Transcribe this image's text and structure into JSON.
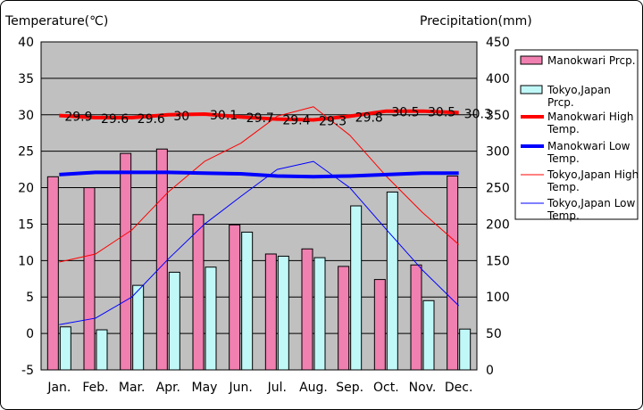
{
  "chart_data": {
    "type": "bar+line",
    "left_axis_title": "Temperature(℃)",
    "right_axis_title": "Precipitation(mm)",
    "left_ticks": [
      "40",
      "35",
      "30",
      "25",
      "20",
      "15",
      "10",
      "5",
      "0",
      "-5"
    ],
    "right_ticks": [
      "450",
      "400",
      "350",
      "300",
      "250",
      "200",
      "150",
      "100",
      "50",
      "0"
    ],
    "left_range": [
      -5,
      40
    ],
    "right_range": [
      0,
      450
    ],
    "categories": [
      "Jan.",
      "Feb.",
      "Mar.",
      "Apr.",
      "May",
      "Jun.",
      "Jul.",
      "Aug.",
      "Sep.",
      "Oct.",
      "Nov.",
      "Dec."
    ],
    "bar_series": [
      {
        "name": "Manokwari Prcp.",
        "color": "#f080b0",
        "values": [
          265,
          250,
          297,
          303,
          213,
          199,
          159,
          166,
          142,
          124,
          144,
          266
        ]
      },
      {
        "name": "Tokyo,Japan Prcp.",
        "color": "#c0f8f8",
        "values": [
          59,
          55,
          116,
          134,
          141,
          189,
          156,
          154,
          225,
          244,
          95,
          56
        ]
      }
    ],
    "line_series": [
      {
        "name": "Manokwari High Temp.",
        "color": "#ff0000",
        "width": "thick",
        "values": [
          29.9,
          29.6,
          29.6,
          30,
          30.1,
          29.7,
          29.4,
          29.3,
          29.8,
          30.5,
          30.5,
          30.3
        ],
        "labels": [
          "29.9",
          "29.6",
          "29.6",
          "30",
          "30.1",
          "29.7",
          "29.4",
          "29.3",
          "29.8",
          "30.5",
          "30.5",
          "30.3"
        ]
      },
      {
        "name": "Manokwari Low Temp.",
        "color": "#0000ff",
        "width": "thick",
        "values": [
          21.8,
          22.1,
          22.1,
          22.1,
          22.0,
          21.9,
          21.6,
          21.5,
          21.6,
          21.8,
          22.0,
          22.0
        ]
      },
      {
        "name": "Tokyo,Japan High Temp.",
        "color": "#ff0000",
        "width": "thin",
        "values": [
          9.8,
          10.9,
          14.2,
          19.4,
          23.6,
          26.1,
          29.8,
          31.1,
          27.2,
          21.6,
          16.6,
          12.2
        ]
      },
      {
        "name": "Tokyo,Japan Low Temp.",
        "color": "#0000ff",
        "width": "thin",
        "values": [
          1.2,
          2.1,
          5.0,
          10.2,
          15.0,
          18.8,
          22.5,
          23.6,
          20.0,
          14.3,
          8.7,
          3.8
        ]
      }
    ],
    "legend": [
      {
        "label": "Manokwari Prcp.",
        "kind": "bar",
        "color": "#f080b0"
      },
      {
        "label": "Tokyo,Japan Prcp.",
        "kind": "bar",
        "color": "#c0f8f8"
      },
      {
        "label": "Manokwari High Temp.",
        "kind": "line",
        "color": "#ff0000",
        "width": "thick"
      },
      {
        "label": "Manokwari Low Temp.",
        "kind": "line",
        "color": "#0000ff",
        "width": "thick"
      },
      {
        "label": "Tokyo,Japan High Temp.",
        "kind": "line",
        "color": "#ff0000",
        "width": "thin"
      },
      {
        "label": "Tokyo,Japan Low Temp.",
        "kind": "line",
        "color": "#0000ff",
        "width": "thin"
      }
    ],
    "legend_position": "right",
    "grid": true,
    "plot_background": "#c0c0c0"
  }
}
